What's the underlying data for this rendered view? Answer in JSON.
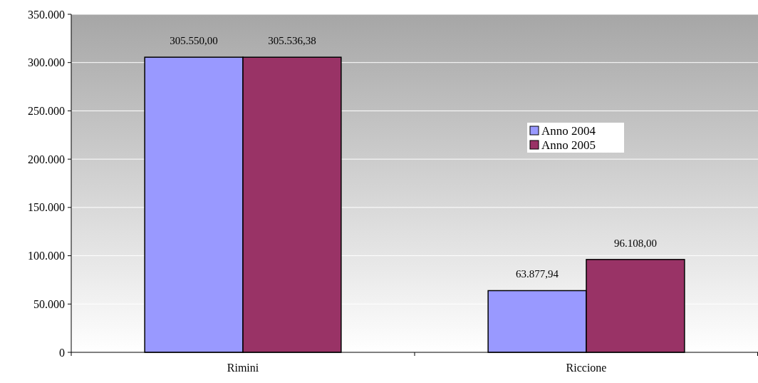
{
  "chart_data": {
    "type": "bar",
    "categories": [
      "Rimini",
      "Riccione"
    ],
    "series": [
      {
        "name": "Anno 2004",
        "color": "#9999ff",
        "values": [
          305550,
          63877.94
        ],
        "value_labels": [
          "305.550,00",
          "63.877,94"
        ]
      },
      {
        "name": "Anno 2005",
        "color": "#993366",
        "values": [
          305536.38,
          96108
        ],
        "value_labels": [
          "305.536,38",
          "96.108,00"
        ]
      }
    ],
    "ylim": [
      0,
      350000
    ],
    "yticks": [
      {
        "value": 0,
        "label": "0"
      },
      {
        "value": 50000,
        "label": "50.000"
      },
      {
        "value": 100000,
        "label": "100.000"
      },
      {
        "value": 150000,
        "label": "150.000"
      },
      {
        "value": 200000,
        "label": "200.000"
      },
      {
        "value": 250000,
        "label": "250.000"
      },
      {
        "value": 300000,
        "label": "300.000"
      },
      {
        "value": 350000,
        "label": "350.000"
      }
    ],
    "grid": "y",
    "legend": "right"
  }
}
